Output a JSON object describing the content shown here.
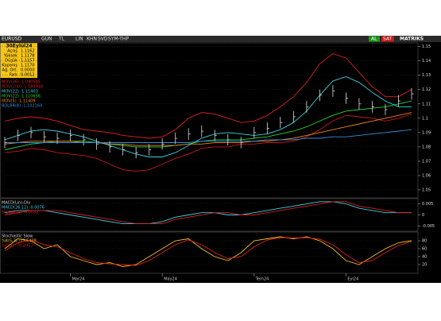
{
  "toolbar": {
    "symbol": "EURUSD",
    "items": [
      "GUN",
      "TL",
      "LIN",
      "KHN",
      "SVD",
      "SYM-THP"
    ],
    "buy": "AL",
    "sell": "SAT",
    "brand": "MATRIKS"
  },
  "info_box": {
    "date": "30Eylül24",
    "rows": [
      [
        "Açılış",
        "1.1162"
      ],
      [
        "Yüksek",
        "1.1178"
      ],
      [
        "Düşük",
        "1.1157"
      ],
      [
        "Kapanış",
        "1.1170"
      ],
      [
        "Ağ. Ort.",
        "0.0000"
      ],
      [
        "Fark",
        "0.0012"
      ]
    ]
  },
  "chart_data": [
    {
      "type": "hlc",
      "ylim": [
        1.045,
        1.152
      ],
      "yticks": [
        1.05,
        1.06,
        1.07,
        1.08,
        1.09,
        1.1,
        1.11,
        1.12,
        1.13,
        1.14,
        1.15
      ],
      "color": "#dddddd",
      "high": [
        1.087,
        1.092,
        1.094,
        1.091,
        1.09,
        1.092,
        1.089,
        1.086,
        1.084,
        1.082,
        1.08,
        1.082,
        1.086,
        1.09,
        1.093,
        1.095,
        1.092,
        1.089,
        1.087,
        1.094,
        1.097,
        1.101,
        1.105,
        1.112,
        1.12,
        1.123,
        1.118,
        1.114,
        1.112,
        1.11,
        1.116,
        1.121
      ],
      "low": [
        1.079,
        1.084,
        1.086,
        1.083,
        1.082,
        1.084,
        1.081,
        1.078,
        1.076,
        1.074,
        1.072,
        1.074,
        1.078,
        1.082,
        1.085,
        1.087,
        1.084,
        1.081,
        1.079,
        1.086,
        1.089,
        1.093,
        1.097,
        1.104,
        1.112,
        1.115,
        1.11,
        1.106,
        1.104,
        1.102,
        1.108,
        1.113
      ],
      "close": [
        1.083,
        1.088,
        1.09,
        1.087,
        1.086,
        1.088,
        1.085,
        1.082,
        1.08,
        1.078,
        1.076,
        1.078,
        1.082,
        1.086,
        1.089,
        1.091,
        1.088,
        1.085,
        1.083,
        1.09,
        1.093,
        1.097,
        1.101,
        1.108,
        1.116,
        1.119,
        1.114,
        1.11,
        1.108,
        1.106,
        1.112,
        1.117
      ],
      "series": [
        {
          "name": "MOV(36) :1.090585",
          "color": "#e02020",
          "values": [
            1.098,
            1.1,
            1.101,
            1.1,
            1.098,
            1.095,
            1.092,
            1.091,
            1.09,
            1.088,
            1.087,
            1.086,
            1.087,
            1.092,
            1.1,
            1.104,
            1.103,
            1.1,
            1.097,
            1.098,
            1.102,
            1.108,
            1.115,
            1.125,
            1.138,
            1.145,
            1.142,
            1.132,
            1.122,
            1.115,
            1.115,
            1.12
          ]
        },
        {
          "name": "MOV(200) :1.088948",
          "color": "#c81818",
          "values": [
            1.076,
            1.077,
            1.079,
            1.078,
            1.076,
            1.075,
            1.074,
            1.072,
            1.068,
            1.064,
            1.063,
            1.064,
            1.068,
            1.072,
            1.075,
            1.079,
            1.08,
            1.08,
            1.082,
            1.082,
            1.083,
            1.083,
            1.084,
            1.087,
            1.092,
            1.098,
            1.102,
            1.101,
            1.1,
            1.098,
            1.1,
            1.103
          ]
        },
        {
          "name": "MOV(22) :1.11403",
          "color": "#40d0e0",
          "values": [
            1.085,
            1.088,
            1.091,
            1.092,
            1.091,
            1.089,
            1.087,
            1.084,
            1.081,
            1.078,
            1.075,
            1.073,
            1.073,
            1.076,
            1.081,
            1.086,
            1.089,
            1.09,
            1.089,
            1.088,
            1.089,
            1.092,
            1.097,
            1.105,
            1.116,
            1.126,
            1.129,
            1.125,
            1.118,
            1.112,
            1.108,
            1.108
          ]
        },
        {
          "name": "MOV(22) :1.110656",
          "color": "#30d030",
          "values": [
            1.078,
            1.08,
            1.082,
            1.083,
            1.084,
            1.084,
            1.084,
            1.083,
            1.082,
            1.081,
            1.08,
            1.08,
            1.08,
            1.081,
            1.082,
            1.084,
            1.085,
            1.085,
            1.085,
            1.086,
            1.087,
            1.089,
            1.091,
            1.094,
            1.098,
            1.102,
            1.105,
            1.106,
            1.107,
            1.108,
            1.11,
            1.112
          ]
        },
        {
          "name": "MOV(5) :1.11409",
          "color": "#f08020",
          "values": [
            1.082,
            1.083,
            1.084,
            1.084,
            1.084,
            1.084,
            1.083,
            1.083,
            1.082,
            1.082,
            1.081,
            1.081,
            1.081,
            1.081,
            1.082,
            1.082,
            1.083,
            1.083,
            1.083,
            1.084,
            1.084,
            1.085,
            1.086,
            1.088,
            1.09,
            1.092,
            1.094,
            1.096,
            1.098,
            1.1,
            1.102,
            1.104
          ]
        },
        {
          "name": "BOLBR(8) :1.102169",
          "color": "#3090e0",
          "values": [
            1.083,
            1.083,
            1.083,
            1.083,
            1.083,
            1.083,
            1.083,
            1.083,
            1.083,
            1.083,
            1.083,
            1.083,
            1.083,
            1.083,
            1.083,
            1.084,
            1.084,
            1.084,
            1.084,
            1.084,
            1.085,
            1.085,
            1.085,
            1.086,
            1.086,
            1.087,
            1.087,
            1.088,
            1.089,
            1.09,
            1.091,
            1.092
          ]
        }
      ]
    },
    {
      "type": "line",
      "title": "MACD(Lin)-Div",
      "ylim": [
        -0.007,
        0.007
      ],
      "yticks": [
        -0.005,
        0,
        0.005
      ],
      "series": [
        {
          "name": "MACD(26,12) :0.0076",
          "color": "#40d0e0",
          "values": [
            0.001,
            0.002,
            0.002,
            0.002,
            0.001,
            0.0,
            -0.001,
            -0.002,
            -0.003,
            -0.004,
            -0.004,
            -0.004,
            -0.003,
            -0.001,
            0.0,
            0.001,
            0.001,
            0.0,
            0.0,
            0.001,
            0.002,
            0.003,
            0.004,
            0.005,
            0.006,
            0.006,
            0.005,
            0.003,
            0.002,
            0.001,
            0.001,
            0.001
          ]
        },
        {
          "name": "SIGNAL(9) :0.0032",
          "color": "#e02020",
          "values": [
            0.0,
            0.001,
            0.002,
            0.002,
            0.002,
            0.001,
            0.0,
            -0.001,
            -0.002,
            -0.003,
            -0.004,
            -0.004,
            -0.004,
            -0.002,
            -0.001,
            0.0,
            0.001,
            0.001,
            0.0,
            0.0,
            0.001,
            0.002,
            0.003,
            0.004,
            0.005,
            0.006,
            0.006,
            0.004,
            0.003,
            0.002,
            0.001,
            0.001
          ]
        }
      ]
    },
    {
      "type": "line",
      "title": "Stochastic Slow",
      "ylim": [
        0,
        100
      ],
      "yticks": [
        20,
        40,
        60,
        80
      ],
      "xticks": [
        {
          "value": 5,
          "label": "Mar24"
        },
        {
          "value": 12,
          "label": "May24"
        },
        {
          "value": 19,
          "label": "Tem24"
        },
        {
          "value": 26,
          "label": "Eyl24"
        }
      ],
      "series": [
        {
          "name": "%K(5,3) :73.6428",
          "color": "#f0c020",
          "values": [
            60,
            85,
            80,
            60,
            70,
            40,
            30,
            20,
            25,
            15,
            20,
            40,
            60,
            80,
            85,
            60,
            40,
            30,
            50,
            80,
            85,
            90,
            85,
            90,
            80,
            60,
            30,
            20,
            40,
            60,
            75,
            80
          ]
        },
        {
          "name": "%D(3) :70.2957",
          "color": "#e02020",
          "values": [
            55,
            75,
            82,
            70,
            65,
            50,
            35,
            25,
            22,
            20,
            18,
            30,
            50,
            70,
            82,
            70,
            50,
            35,
            40,
            65,
            82,
            88,
            87,
            88,
            84,
            70,
            45,
            25,
            30,
            50,
            68,
            78
          ]
        }
      ]
    }
  ]
}
